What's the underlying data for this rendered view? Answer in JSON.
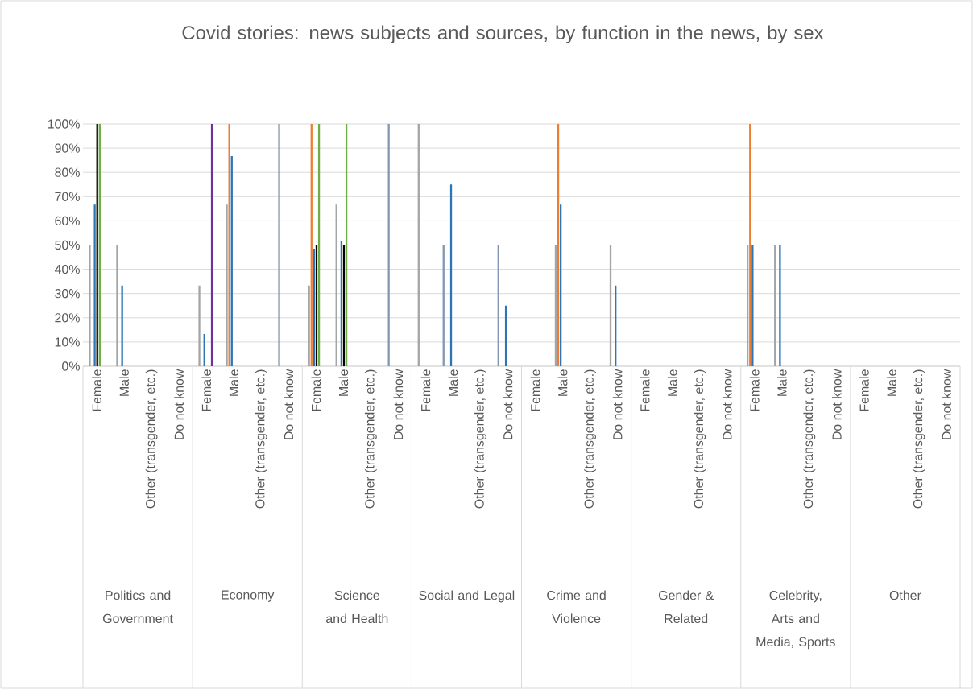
{
  "chart_data": {
    "type": "bar",
    "title": "Covid stories: news subjects and sources, by function in the news, by sex",
    "categories": [
      "Female",
      "Male",
      "Other (transgender, etc.)",
      "Do not know",
      "Female",
      "Male",
      "Other (transgender, etc.)",
      "Do not know",
      "Female",
      "Male",
      "Other (transgender, etc.)",
      "Do not know",
      "Female",
      "Male",
      "Other (transgender, etc.)",
      "Do not know",
      "Female",
      "Male",
      "Other (transgender, etc.)",
      "Do not know",
      "Female",
      "Male",
      "Other (transgender, etc.)",
      "Do not know",
      "Female",
      "Male",
      "Other (transgender, etc.)",
      "Do not know",
      "Female",
      "Male",
      "Other (transgender, etc.)",
      "Do not know"
    ],
    "series": [
      {
        "color": "#8497b0",
        "values": [
          null,
          null,
          null,
          null,
          null,
          null,
          null,
          100,
          null,
          null,
          null,
          100,
          null,
          50,
          null,
          50,
          null,
          null,
          null,
          null,
          null,
          null,
          null,
          null,
          null,
          null,
          null,
          null,
          null,
          null,
          null,
          null
        ]
      },
      {
        "color": "#a5a5a5",
        "values": [
          50,
          50,
          null,
          null,
          33.3,
          66.7,
          null,
          null,
          33.3,
          66.7,
          null,
          null,
          100,
          null,
          null,
          null,
          null,
          50,
          null,
          50,
          null,
          null,
          null,
          null,
          50,
          50,
          null,
          null,
          null,
          null,
          null,
          null
        ]
      },
      {
        "color": "#ed7d31",
        "values": [
          null,
          null,
          null,
          null,
          null,
          100,
          null,
          null,
          100,
          null,
          null,
          null,
          null,
          null,
          null,
          null,
          null,
          100,
          null,
          null,
          null,
          null,
          null,
          null,
          100,
          null,
          null,
          null,
          null,
          null,
          null,
          null
        ]
      },
      {
        "color": "#2e75b6",
        "values": [
          66.7,
          33.3,
          null,
          null,
          13.3,
          86.7,
          null,
          null,
          48.5,
          51.5,
          null,
          null,
          null,
          75,
          null,
          25,
          null,
          66.7,
          null,
          33.3,
          null,
          null,
          null,
          null,
          50,
          50,
          null,
          null,
          null,
          null,
          null,
          null
        ]
      },
      {
        "color": "#000000",
        "values": [
          100,
          null,
          null,
          null,
          null,
          null,
          null,
          null,
          50,
          50,
          null,
          null,
          null,
          null,
          null,
          null,
          null,
          null,
          null,
          null,
          null,
          null,
          null,
          null,
          null,
          null,
          null,
          null,
          null,
          null,
          null,
          null
        ]
      },
      {
        "color": "#70ad47",
        "values": [
          100,
          null,
          null,
          null,
          null,
          null,
          null,
          null,
          100,
          100,
          null,
          null,
          null,
          null,
          null,
          null,
          null,
          null,
          null,
          null,
          null,
          null,
          null,
          null,
          null,
          null,
          null,
          null,
          null,
          null,
          null,
          null
        ]
      },
      {
        "color": "#7030a0",
        "values": [
          null,
          null,
          null,
          null,
          100,
          null,
          null,
          null,
          null,
          null,
          null,
          null,
          null,
          null,
          null,
          null,
          null,
          null,
          null,
          null,
          null,
          null,
          null,
          null,
          null,
          null,
          null,
          null,
          null,
          null,
          null,
          null
        ]
      }
    ],
    "ylim": [
      0,
      100
    ],
    "yticks": [
      {
        "value": 0,
        "label": "0%"
      },
      {
        "value": 10,
        "label": "10%"
      },
      {
        "value": 20,
        "label": "20%"
      },
      {
        "value": 30,
        "label": "30%"
      },
      {
        "value": 40,
        "label": "40%"
      },
      {
        "value": 50,
        "label": "50%"
      },
      {
        "value": 60,
        "label": "60%"
      },
      {
        "value": 70,
        "label": "70%"
      },
      {
        "value": 80,
        "label": "80%"
      },
      {
        "value": 90,
        "label": "90%"
      },
      {
        "value": 100,
        "label": "100%"
      }
    ],
    "grid": "y",
    "annotations": [
      "Politics and Government",
      "Economy",
      "Science and Health",
      "Social and Legal",
      "Crime and Violence",
      "Gender & Related",
      "Celebrity, Arts and Media, Sports",
      "Other"
    ]
  }
}
